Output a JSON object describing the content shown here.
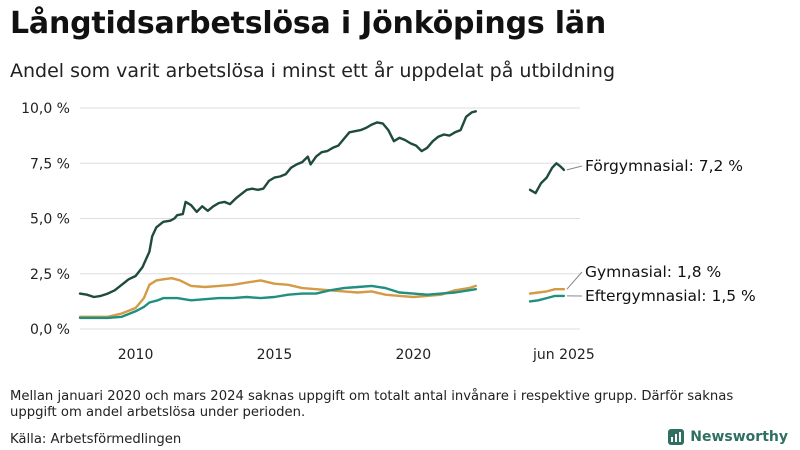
{
  "header": {
    "title": "Långtidsarbetslösa i Jönköpings län",
    "subtitle": "Andel som varit arbetslösa i minst ett år uppdelat på utbildning"
  },
  "footer": {
    "note": "Mellan januari 2020 och mars 2024 saknas uppgift om totalt antal invånare i respektive grupp. Därför saknas uppgift om andel arbetslösa under perioden.",
    "source": "Källa: Arbetsförmedlingen",
    "brand": "Newsworthy"
  },
  "colors": {
    "forgymnasial": "#1f4a3f",
    "gymnasial": "#d49a45",
    "eftergymnasial": "#1f8f80",
    "grid": "#dddddd",
    "brand": "#2f6f62"
  },
  "chart_data": {
    "type": "line",
    "title": "Långtidsarbetslösa i Jönköpings län",
    "subtitle": "Andel som varit arbetslösa i minst ett år uppdelat på utbildning",
    "xlabel": "",
    "ylabel": "",
    "ylim": [
      0,
      10
    ],
    "yticks": [
      0,
      2.5,
      5,
      7.5,
      10
    ],
    "ytick_labels": [
      "0,0 %",
      "2,5 %",
      "5,0 %",
      "7,5 %",
      "10,0 %"
    ],
    "xlim": [
      2008.0,
      2026.0
    ],
    "xticks": [
      2010,
      2015,
      2020,
      2025.42
    ],
    "xtick_labels": [
      "2010",
      "2015",
      "2020",
      "jun 2025"
    ],
    "grid": "horizontal",
    "legend": "end-labels",
    "series": [
      {
        "name": "Förgymnasial",
        "end_label": "Förgymnasial: 7,2 %",
        "color_key": "forgymnasial",
        "segments": [
          [
            [
              2008.0,
              1.6
            ],
            [
              2008.25,
              1.55
            ],
            [
              2008.5,
              1.45
            ],
            [
              2008.75,
              1.5
            ],
            [
              2009.0,
              1.6
            ],
            [
              2009.25,
              1.75
            ],
            [
              2009.5,
              2.0
            ],
            [
              2009.75,
              2.25
            ],
            [
              2010.0,
              2.4
            ],
            [
              2010.25,
              2.8
            ],
            [
              2010.5,
              3.5
            ],
            [
              2010.6,
              4.2
            ],
            [
              2010.75,
              4.6
            ],
            [
              2011.0,
              4.85
            ],
            [
              2011.25,
              4.9
            ],
            [
              2011.4,
              5.0
            ],
            [
              2011.5,
              5.15
            ],
            [
              2011.7,
              5.2
            ],
            [
              2011.8,
              5.75
            ],
            [
              2012.0,
              5.6
            ],
            [
              2012.2,
              5.3
            ],
            [
              2012.4,
              5.55
            ],
            [
              2012.6,
              5.35
            ],
            [
              2012.8,
              5.55
            ],
            [
              2013.0,
              5.7
            ],
            [
              2013.2,
              5.75
            ],
            [
              2013.4,
              5.65
            ],
            [
              2013.6,
              5.9
            ],
            [
              2013.8,
              6.1
            ],
            [
              2014.0,
              6.3
            ],
            [
              2014.2,
              6.35
            ],
            [
              2014.4,
              6.3
            ],
            [
              2014.6,
              6.35
            ],
            [
              2014.8,
              6.7
            ],
            [
              2015.0,
              6.85
            ],
            [
              2015.2,
              6.9
            ],
            [
              2015.4,
              7.0
            ],
            [
              2015.6,
              7.3
            ],
            [
              2015.8,
              7.45
            ],
            [
              2016.0,
              7.55
            ],
            [
              2016.2,
              7.8
            ],
            [
              2016.3,
              7.45
            ],
            [
              2016.5,
              7.8
            ],
            [
              2016.7,
              8.0
            ],
            [
              2016.9,
              8.05
            ],
            [
              2017.1,
              8.2
            ],
            [
              2017.3,
              8.3
            ],
            [
              2017.5,
              8.6
            ],
            [
              2017.7,
              8.9
            ],
            [
              2017.9,
              8.95
            ],
            [
              2018.1,
              9.0
            ],
            [
              2018.3,
              9.1
            ],
            [
              2018.5,
              9.25
            ],
            [
              2018.7,
              9.35
            ],
            [
              2018.9,
              9.3
            ],
            [
              2019.1,
              9.0
            ],
            [
              2019.3,
              8.5
            ],
            [
              2019.5,
              8.65
            ],
            [
              2019.7,
              8.55
            ],
            [
              2019.9,
              8.4
            ],
            [
              2020.1,
              8.3
            ],
            [
              2020.3,
              8.05
            ],
            [
              2020.5,
              8.2
            ],
            [
              2020.7,
              8.5
            ],
            [
              2020.9,
              8.7
            ],
            [
              2021.1,
              8.8
            ],
            [
              2021.3,
              8.75
            ],
            [
              2021.5,
              8.9
            ],
            [
              2021.7,
              9.0
            ],
            [
              2021.9,
              9.6
            ],
            [
              2022.1,
              9.8
            ],
            [
              2022.25,
              9.85
            ]
          ],
          [
            [
              2024.2,
              6.3
            ],
            [
              2024.4,
              6.15
            ],
            [
              2024.6,
              6.6
            ],
            [
              2024.8,
              6.85
            ],
            [
              2025.0,
              7.3
            ],
            [
              2025.15,
              7.5
            ],
            [
              2025.3,
              7.35
            ],
            [
              2025.42,
              7.2
            ]
          ]
        ]
      },
      {
        "name": "Gymnasial",
        "end_label": "Gymnasial: 1,8 %",
        "color_key": "gymnasial",
        "segments": [
          [
            [
              2008.0,
              0.55
            ],
            [
              2008.5,
              0.55
            ],
            [
              2009.0,
              0.55
            ],
            [
              2009.5,
              0.7
            ],
            [
              2010.0,
              0.95
            ],
            [
              2010.3,
              1.4
            ],
            [
              2010.5,
              2.0
            ],
            [
              2010.75,
              2.2
            ],
            [
              2011.0,
              2.25
            ],
            [
              2011.3,
              2.3
            ],
            [
              2011.6,
              2.2
            ],
            [
              2012.0,
              1.95
            ],
            [
              2012.5,
              1.9
            ],
            [
              2013.0,
              1.95
            ],
            [
              2013.5,
              2.0
            ],
            [
              2014.0,
              2.1
            ],
            [
              2014.5,
              2.2
            ],
            [
              2015.0,
              2.05
            ],
            [
              2015.5,
              2.0
            ],
            [
              2016.0,
              1.85
            ],
            [
              2016.5,
              1.8
            ],
            [
              2017.0,
              1.75
            ],
            [
              2017.5,
              1.7
            ],
            [
              2018.0,
              1.65
            ],
            [
              2018.5,
              1.7
            ],
            [
              2019.0,
              1.55
            ],
            [
              2019.5,
              1.5
            ],
            [
              2020.0,
              1.45
            ],
            [
              2020.5,
              1.5
            ],
            [
              2021.0,
              1.55
            ],
            [
              2021.5,
              1.75
            ],
            [
              2022.0,
              1.85
            ],
            [
              2022.25,
              1.95
            ]
          ],
          [
            [
              2024.2,
              1.6
            ],
            [
              2024.5,
              1.65
            ],
            [
              2024.8,
              1.7
            ],
            [
              2025.1,
              1.8
            ],
            [
              2025.42,
              1.8
            ]
          ]
        ]
      },
      {
        "name": "Eftergymnasial",
        "end_label": "Eftergymnasial: 1,5 %",
        "color_key": "eftergymnasial",
        "segments": [
          [
            [
              2008.0,
              0.5
            ],
            [
              2008.5,
              0.5
            ],
            [
              2009.0,
              0.5
            ],
            [
              2009.5,
              0.55
            ],
            [
              2010.0,
              0.8
            ],
            [
              2010.3,
              1.0
            ],
            [
              2010.5,
              1.2
            ],
            [
              2010.8,
              1.3
            ],
            [
              2011.0,
              1.4
            ],
            [
              2011.5,
              1.4
            ],
            [
              2012.0,
              1.3
            ],
            [
              2012.5,
              1.35
            ],
            [
              2013.0,
              1.4
            ],
            [
              2013.5,
              1.4
            ],
            [
              2014.0,
              1.45
            ],
            [
              2014.5,
              1.4
            ],
            [
              2015.0,
              1.45
            ],
            [
              2015.5,
              1.55
            ],
            [
              2016.0,
              1.6
            ],
            [
              2016.5,
              1.6
            ],
            [
              2017.0,
              1.75
            ],
            [
              2017.5,
              1.85
            ],
            [
              2018.0,
              1.9
            ],
            [
              2018.5,
              1.95
            ],
            [
              2019.0,
              1.85
            ],
            [
              2019.5,
              1.65
            ],
            [
              2020.0,
              1.6
            ],
            [
              2020.5,
              1.55
            ],
            [
              2021.0,
              1.6
            ],
            [
              2021.5,
              1.65
            ],
            [
              2022.0,
              1.75
            ],
            [
              2022.25,
              1.8
            ]
          ],
          [
            [
              2024.2,
              1.25
            ],
            [
              2024.5,
              1.3
            ],
            [
              2024.8,
              1.4
            ],
            [
              2025.1,
              1.5
            ],
            [
              2025.42,
              1.5
            ]
          ]
        ]
      }
    ]
  }
}
